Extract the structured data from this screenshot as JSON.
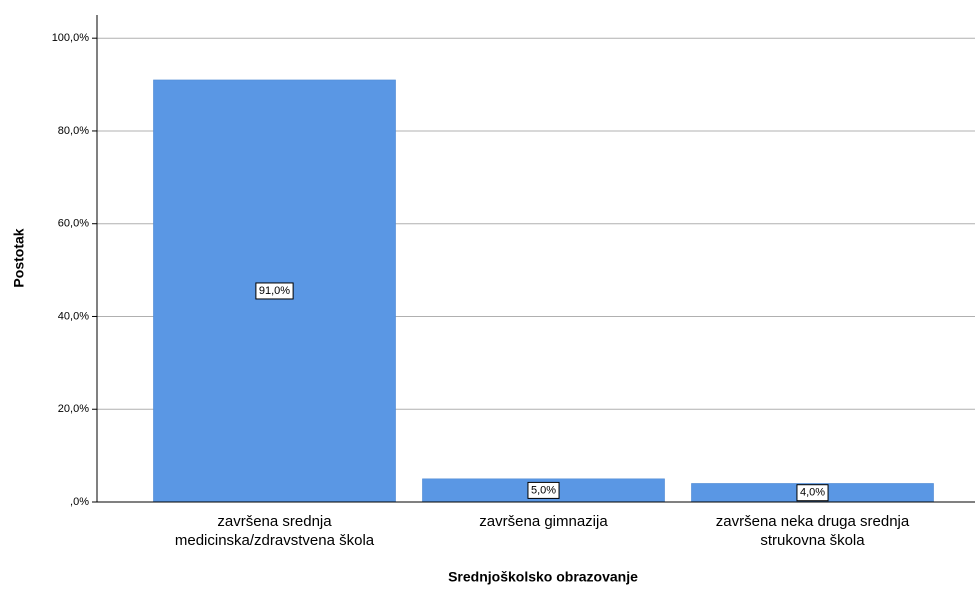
{
  "chart_data": {
    "type": "bar",
    "y_label": "Postotak",
    "x_label": "Srednjoškolsko obrazovanje",
    "categories": [
      "završena srednja\nmedicinska/zdravstvena škola",
      "završena gimnazija",
      "završena neka druga srednja\nstrukovna škola"
    ],
    "values": [
      91,
      5,
      4
    ],
    "value_labels": [
      "91,0%",
      "5,0%",
      "4,0%"
    ],
    "color": "#5a97e4",
    "ylim": [
      0,
      105
    ],
    "yticks": [
      {
        "value": 0,
        "label": ",0%"
      },
      {
        "value": 20,
        "label": "20,0%"
      },
      {
        "value": 40,
        "label": "40,0%"
      },
      {
        "value": 60,
        "label": "60,0%"
      },
      {
        "value": 80,
        "label": "80,0%"
      },
      {
        "value": 100,
        "label": "100,0%"
      }
    ],
    "grid": true
  }
}
